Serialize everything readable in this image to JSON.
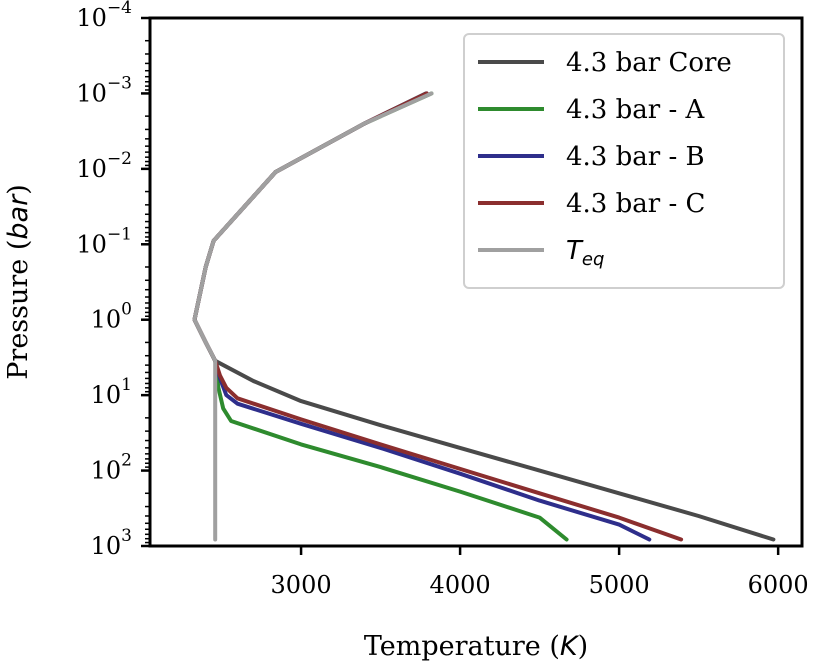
{
  "chart_data": {
    "type": "line",
    "xlabel": "Temperature (",
    "xlabel_unit": "K",
    "xlabel_close": ")",
    "ylabel": "Pressure (",
    "ylabel_unit": "bar",
    "ylabel_close": ")",
    "xlim": [
      2050,
      6150
    ],
    "ylim_exponent": [
      -4,
      3
    ],
    "y_scale": "log",
    "y_inverted": true,
    "grid": false,
    "legend_position": "top-right",
    "x_ticks": [
      3000,
      4000,
      5000,
      6000
    ],
    "x_tick_labels": [
      "3000",
      "4000",
      "5000",
      "6000"
    ],
    "y_ticks": [
      {
        "exp": -4,
        "base": "10",
        "label": "−4"
      },
      {
        "exp": -3,
        "base": "10",
        "label": "−3"
      },
      {
        "exp": -2,
        "base": "10",
        "label": "−2"
      },
      {
        "exp": -1,
        "base": "10",
        "label": "−1"
      },
      {
        "exp": 0,
        "base": "10",
        "label": "0"
      },
      {
        "exp": 1,
        "base": "10",
        "label": "1"
      },
      {
        "exp": 2,
        "base": "10",
        "label": "2"
      },
      {
        "exp": 3,
        "base": "10",
        "label": "3"
      }
    ],
    "series": [
      {
        "name": "4.3 bar Core",
        "color": "#4a4a4a",
        "points": [
          [
            3785,
            0.001
          ],
          [
            3400,
            0.0025
          ],
          [
            2840,
            0.011
          ],
          [
            2450,
            0.09
          ],
          [
            2400,
            0.2
          ],
          [
            2330,
            1.0
          ],
          [
            2400,
            2.0
          ],
          [
            2460,
            3.5
          ],
          [
            2700,
            6.5
          ],
          [
            3000,
            12
          ],
          [
            3500,
            25
          ],
          [
            4000,
            50
          ],
          [
            4500,
            100
          ],
          [
            5000,
            200
          ],
          [
            5500,
            400
          ],
          [
            5970,
            820
          ]
        ]
      },
      {
        "name": "4.3 bar - A",
        "color": "#2e8b2e",
        "points": [
          [
            3820,
            0.001
          ],
          [
            3400,
            0.0025
          ],
          [
            2840,
            0.011
          ],
          [
            2450,
            0.09
          ],
          [
            2400,
            0.2
          ],
          [
            2330,
            1.0
          ],
          [
            2400,
            2.0
          ],
          [
            2460,
            3.5
          ],
          [
            2480,
            8
          ],
          [
            2510,
            15
          ],
          [
            2560,
            22
          ],
          [
            3000,
            45
          ],
          [
            3500,
            90
          ],
          [
            4000,
            190
          ],
          [
            4500,
            420
          ],
          [
            4670,
            820
          ]
        ]
      },
      {
        "name": "4.3 bar - B",
        "color": "#2e2e8b",
        "points": [
          [
            3790,
            0.001
          ],
          [
            3400,
            0.0025
          ],
          [
            2840,
            0.011
          ],
          [
            2450,
            0.09
          ],
          [
            2400,
            0.2
          ],
          [
            2330,
            1.0
          ],
          [
            2400,
            2.0
          ],
          [
            2460,
            3.5
          ],
          [
            2490,
            6
          ],
          [
            2530,
            10
          ],
          [
            2600,
            13
          ],
          [
            3000,
            24
          ],
          [
            3500,
            50
          ],
          [
            4000,
            110
          ],
          [
            4500,
            250
          ],
          [
            5000,
            520
          ],
          [
            5190,
            820
          ]
        ]
      },
      {
        "name": "4.3 bar - C",
        "color": "#8b2e2e",
        "points": [
          [
            3790,
            0.001
          ],
          [
            3400,
            0.0025
          ],
          [
            2840,
            0.011
          ],
          [
            2450,
            0.09
          ],
          [
            2400,
            0.2
          ],
          [
            2330,
            1.0
          ],
          [
            2400,
            2.0
          ],
          [
            2460,
            3.5
          ],
          [
            2490,
            5.5
          ],
          [
            2530,
            8
          ],
          [
            2600,
            11
          ],
          [
            3000,
            21
          ],
          [
            3500,
            45
          ],
          [
            4000,
            95
          ],
          [
            4500,
            200
          ],
          [
            5000,
            420
          ],
          [
            5390,
            820
          ]
        ]
      },
      {
        "name": "T",
        "name_sub": "eq",
        "color": "#a0a0a0",
        "points": [
          [
            3820,
            0.001
          ],
          [
            3400,
            0.0025
          ],
          [
            2840,
            0.011
          ],
          [
            2450,
            0.09
          ],
          [
            2400,
            0.2
          ],
          [
            2330,
            1.0
          ],
          [
            2400,
            2.0
          ],
          [
            2460,
            3.5
          ],
          [
            2460,
            820
          ]
        ]
      }
    ]
  }
}
